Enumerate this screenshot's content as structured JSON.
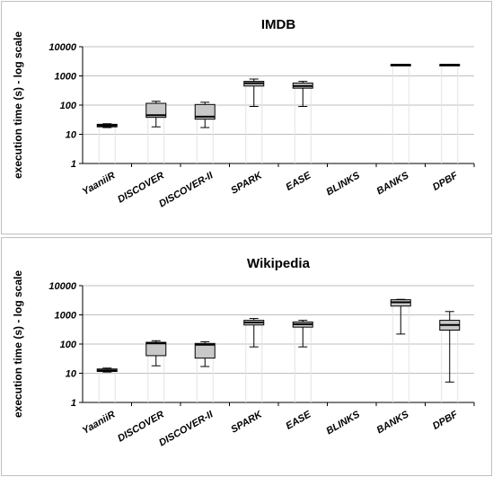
{
  "chart_data": [
    {
      "type": "boxplot",
      "title": "IMDB",
      "xlabel": "",
      "ylabel": "execution time (s) - log scale",
      "yscale": "log",
      "ylim": [
        1,
        10000
      ],
      "yticks": [
        "1",
        "10",
        "100",
        "1000",
        "10000"
      ],
      "grid": "horizontal",
      "categories": [
        "YaaniiR",
        "DISCOVER",
        "DISCOVER-II",
        "SPARK",
        "EASE",
        "BLINKS",
        "BANKS",
        "DPBF"
      ],
      "boxes": [
        {
          "min": 17,
          "q1": 18,
          "median": 20,
          "q3": 22,
          "max": 23
        },
        {
          "min": 18,
          "q1": 38,
          "median": 45,
          "q3": 115,
          "max": 135
        },
        {
          "min": 17,
          "q1": 33,
          "median": 40,
          "q3": 105,
          "max": 125
        },
        {
          "min": 90,
          "q1": 450,
          "median": 560,
          "q3": 650,
          "max": 780
        },
        {
          "min": 90,
          "q1": 380,
          "median": 450,
          "q3": 570,
          "max": 650
        },
        null,
        {
          "min": 2300,
          "q1": 2300,
          "median": 2400,
          "q3": 2450,
          "max": 2450
        },
        {
          "min": 2300,
          "q1": 2300,
          "median": 2400,
          "q3": 2450,
          "max": 2450
        }
      ]
    },
    {
      "type": "boxplot",
      "title": "Wikipedia",
      "xlabel": "",
      "ylabel": "execution time (s) - log scale",
      "yscale": "log",
      "ylim": [
        1,
        10000
      ],
      "yticks": [
        "1",
        "10",
        "100",
        "1000",
        "10000"
      ],
      "grid": "horizontal",
      "categories": [
        "YaaniiR",
        "DISCOVER",
        "DISCOVER-II",
        "SPARK",
        "EASE",
        "BLINKS",
        "BANKS",
        "DPBF"
      ],
      "boxes": [
        {
          "min": 11,
          "q1": 11.5,
          "median": 12.5,
          "q3": 14,
          "max": 15
        },
        {
          "min": 18,
          "q1": 40,
          "median": 105,
          "q3": 115,
          "max": 130
        },
        {
          "min": 17,
          "q1": 33,
          "median": 95,
          "q3": 105,
          "max": 120
        },
        {
          "min": 80,
          "q1": 450,
          "median": 550,
          "q3": 650,
          "max": 750
        },
        {
          "min": 80,
          "q1": 380,
          "median": 480,
          "q3": 570,
          "max": 650
        },
        null,
        {
          "min": 220,
          "q1": 2000,
          "median": 2700,
          "q3": 3300,
          "max": 3400
        },
        {
          "min": 5,
          "q1": 300,
          "median": 450,
          "q3": 650,
          "max": 1300
        }
      ]
    }
  ],
  "style": {
    "box_fill": "#c8c8c8",
    "box_stroke": "#000000",
    "grid_color": "#bfbfbf",
    "panel_border": "#bfbfbf",
    "guide_color": "#e3e3e3"
  }
}
